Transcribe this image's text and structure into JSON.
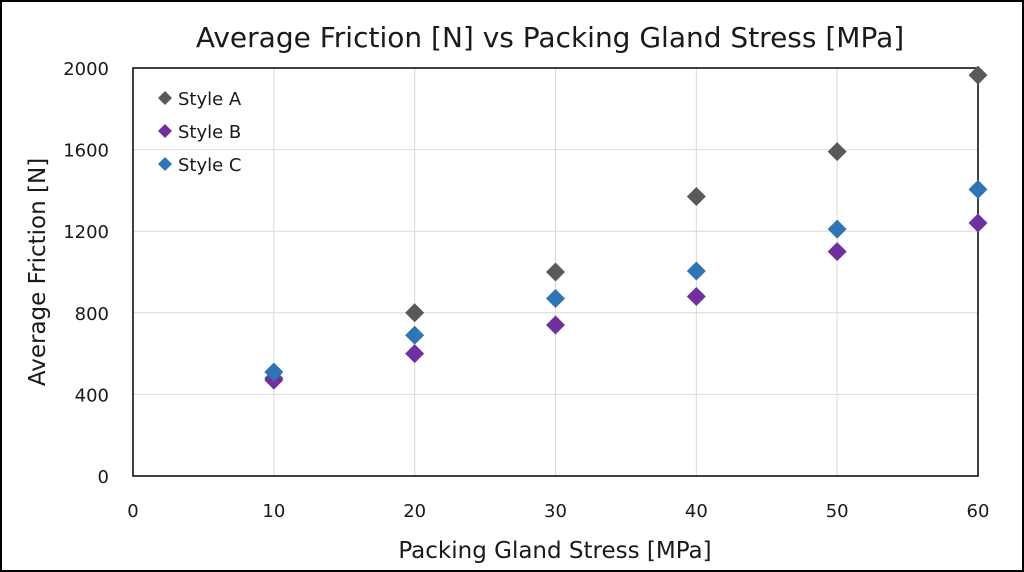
{
  "chart_data": {
    "type": "scatter",
    "title": "Average Friction [N] vs Packing Gland Stress [MPa]",
    "xlabel": "Packing Gland Stress [MPa]",
    "ylabel": "Average Friction [N]",
    "xlim": [
      0,
      60
    ],
    "ylim": [
      0,
      2000
    ],
    "xticks": [
      0,
      10,
      20,
      30,
      40,
      50,
      60
    ],
    "yticks": [
      0,
      400,
      800,
      1200,
      1600,
      2000
    ],
    "grid": true,
    "legend_position": "top-left",
    "series": [
      {
        "name": "Style A",
        "color": "#595959",
        "marker": "diamond",
        "x": [
          10,
          20,
          30,
          40,
          50,
          60
        ],
        "y": [
          480,
          800,
          1000,
          1370,
          1590,
          1965
        ]
      },
      {
        "name": "Style B",
        "color": "#7030a0",
        "marker": "diamond",
        "x": [
          10,
          20,
          30,
          40,
          50,
          60
        ],
        "y": [
          470,
          600,
          740,
          880,
          1100,
          1240
        ]
      },
      {
        "name": "Style C",
        "color": "#2e75b6",
        "marker": "diamond",
        "x": [
          10,
          20,
          30,
          40,
          50,
          60
        ],
        "y": [
          510,
          690,
          870,
          1005,
          1210,
          1405
        ]
      }
    ]
  }
}
